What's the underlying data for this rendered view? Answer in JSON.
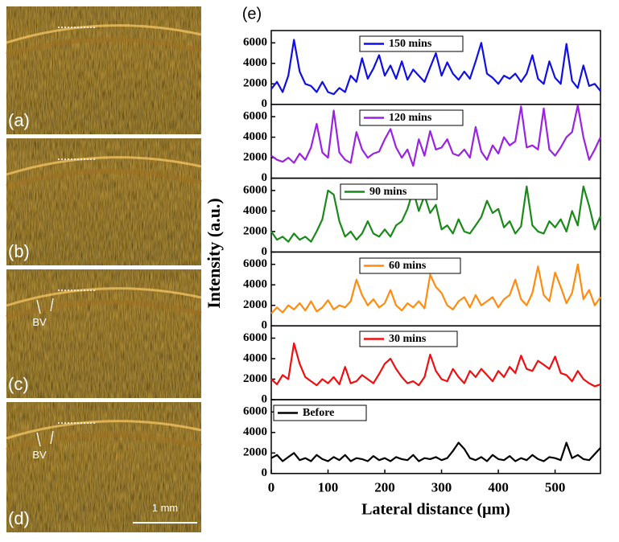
{
  "figure": {
    "panel_label": "(e)",
    "ylabel": "Intensity (a.u.)"
  },
  "images": [
    {
      "label": "(a)"
    },
    {
      "label": "(b)"
    },
    {
      "label": "(c)",
      "annotation": "BV"
    },
    {
      "label": "(d)",
      "annotation": "BV",
      "scale_bar": "1 mm"
    }
  ],
  "chart_data": [
    {
      "type": "line",
      "x": [
        0,
        10,
        20,
        30,
        40,
        50,
        60,
        70,
        80,
        90,
        100,
        110,
        120,
        130,
        140,
        150,
        160,
        170,
        180,
        190,
        200,
        210,
        220,
        230,
        240,
        250,
        260,
        270,
        280,
        290,
        300,
        310,
        320,
        330,
        340,
        350,
        360,
        370,
        380,
        390,
        400,
        410,
        420,
        430,
        440,
        450,
        460,
        470,
        480,
        490,
        500,
        510,
        520,
        530,
        540,
        550,
        560,
        570,
        580
      ],
      "series": [
        {
          "name": "150 mins",
          "color": "#1010e0",
          "values": [
            1500,
            2200,
            1200,
            2800,
            6300,
            3200,
            2000,
            1800,
            1200,
            2200,
            1200,
            1000,
            1600,
            1200,
            2800,
            2200,
            4500,
            2500,
            3500,
            4800,
            2800,
            3800,
            2500,
            4200,
            2400,
            3400,
            2800,
            2200,
            3600,
            5000,
            2800,
            4100,
            3000,
            2400,
            3200,
            2500,
            4200,
            6000,
            3000,
            2600,
            2000,
            2800,
            2500,
            3000,
            2200,
            3000,
            4800,
            2500,
            2000,
            4200,
            2600,
            2000,
            5900,
            2300,
            1600,
            3800,
            1800,
            2000,
            1300
          ]
        }
      ],
      "xlim": [
        0,
        580
      ],
      "ylim": [
        0,
        7200
      ],
      "yticks": [
        0,
        2000,
        4000,
        6000
      ]
    },
    {
      "type": "line",
      "x": [
        0,
        10,
        20,
        30,
        40,
        50,
        60,
        70,
        80,
        90,
        100,
        110,
        120,
        130,
        140,
        150,
        160,
        170,
        180,
        190,
        200,
        210,
        220,
        230,
        240,
        250,
        260,
        270,
        280,
        290,
        300,
        310,
        320,
        330,
        340,
        350,
        360,
        370,
        380,
        390,
        400,
        410,
        420,
        430,
        440,
        450,
        460,
        470,
        480,
        490,
        500,
        510,
        520,
        530,
        540,
        550,
        560,
        570,
        580
      ],
      "series": [
        {
          "name": "120 mins",
          "color": "#9a22e0",
          "values": [
            2200,
            1800,
            1600,
            2000,
            1500,
            2400,
            1800,
            3000,
            5300,
            2500,
            2000,
            6600,
            2500,
            1800,
            1500,
            4500,
            2800,
            2000,
            2400,
            2600,
            3800,
            4800,
            3000,
            2000,
            2800,
            1200,
            3800,
            2200,
            4600,
            2800,
            3000,
            3800,
            2400,
            2200,
            2800,
            2000,
            5000,
            2600,
            1800,
            3200,
            2400,
            4000,
            3200,
            3600,
            7000,
            3000,
            3200,
            2800,
            6800,
            2800,
            2200,
            3000,
            4000,
            4500,
            7100,
            4000,
            1800,
            2800,
            4000
          ]
        }
      ],
      "xlim": [
        0,
        580
      ],
      "ylim": [
        0,
        7200
      ],
      "yticks": [
        0,
        2000,
        4000,
        6000
      ]
    },
    {
      "type": "line",
      "x": [
        0,
        10,
        20,
        30,
        40,
        50,
        60,
        70,
        80,
        90,
        100,
        110,
        120,
        130,
        140,
        150,
        160,
        170,
        180,
        190,
        200,
        210,
        220,
        230,
        240,
        250,
        260,
        270,
        280,
        290,
        300,
        310,
        320,
        330,
        340,
        350,
        360,
        370,
        380,
        390,
        400,
        410,
        420,
        430,
        440,
        450,
        460,
        470,
        480,
        490,
        500,
        510,
        520,
        530,
        540,
        550,
        560,
        570,
        580
      ],
      "series": [
        {
          "name": "90 mins",
          "color": "#1a8a1a",
          "values": [
            2000,
            1200,
            1500,
            1000,
            1800,
            1200,
            1500,
            1000,
            2000,
            3200,
            6000,
            5600,
            3000,
            1500,
            2000,
            1200,
            1800,
            3000,
            1800,
            1500,
            2200,
            1500,
            2600,
            3000,
            4200,
            6000,
            4000,
            5500,
            3800,
            4600,
            2200,
            2600,
            1800,
            3200,
            2000,
            1800,
            2600,
            3400,
            5000,
            3800,
            4200,
            2400,
            3000,
            1800,
            2500,
            6400,
            2600,
            2000,
            1800,
            3000,
            2400,
            3200,
            2000,
            4000,
            2600,
            6400,
            4500,
            2200,
            3500
          ]
        }
      ],
      "xlim": [
        0,
        580
      ],
      "ylim": [
        0,
        7200
      ],
      "yticks": [
        0,
        2000,
        4000,
        6000
      ]
    },
    {
      "type": "line",
      "x": [
        0,
        10,
        20,
        30,
        40,
        50,
        60,
        70,
        80,
        90,
        100,
        110,
        120,
        130,
        140,
        150,
        160,
        170,
        180,
        190,
        200,
        210,
        220,
        230,
        240,
        250,
        260,
        270,
        280,
        290,
        300,
        310,
        320,
        330,
        340,
        350,
        360,
        370,
        380,
        390,
        400,
        410,
        420,
        430,
        440,
        450,
        460,
        470,
        480,
        490,
        500,
        510,
        520,
        530,
        540,
        550,
        560,
        570,
        580
      ],
      "series": [
        {
          "name": "60 mins",
          "color": "#ff8c10",
          "values": [
            1200,
            1800,
            1300,
            2000,
            1600,
            2200,
            1500,
            2400,
            1400,
            1800,
            2500,
            1600,
            2000,
            1800,
            2400,
            4500,
            3000,
            2000,
            2600,
            1800,
            2200,
            3500,
            2000,
            1500,
            2200,
            1800,
            2400,
            1700,
            5000,
            3800,
            3200,
            2000,
            1600,
            2400,
            2800,
            1800,
            3000,
            2000,
            2400,
            2800,
            1800,
            2600,
            3000,
            4500,
            2600,
            2000,
            3200,
            5800,
            3000,
            2400,
            5200,
            3800,
            2200,
            3200,
            6000,
            2600,
            3500,
            2000,
            2800
          ]
        }
      ],
      "xlim": [
        0,
        580
      ],
      "ylim": [
        0,
        7200
      ],
      "yticks": [
        0,
        2000,
        4000,
        6000
      ]
    },
    {
      "type": "line",
      "x": [
        0,
        10,
        20,
        30,
        40,
        50,
        60,
        70,
        80,
        90,
        100,
        110,
        120,
        130,
        140,
        150,
        160,
        170,
        180,
        190,
        200,
        210,
        220,
        230,
        240,
        250,
        260,
        270,
        280,
        290,
        300,
        310,
        320,
        330,
        340,
        350,
        360,
        370,
        380,
        390,
        400,
        410,
        420,
        430,
        440,
        450,
        460,
        470,
        480,
        490,
        500,
        510,
        520,
        530,
        540,
        550,
        560,
        570,
        580
      ],
      "series": [
        {
          "name": "30 mins",
          "color": "#ee1010",
          "values": [
            2000,
            1500,
            2400,
            2000,
            5500,
            3500,
            2200,
            1800,
            1400,
            2000,
            1600,
            2200,
            1500,
            3200,
            1600,
            1800,
            2400,
            2000,
            1600,
            2500,
            3500,
            4000,
            3000,
            2200,
            1600,
            1800,
            1400,
            2200,
            4400,
            2800,
            2000,
            1800,
            3000,
            2200,
            1600,
            2800,
            2200,
            3000,
            2400,
            1800,
            2800,
            2200,
            3200,
            2600,
            4300,
            3000,
            2800,
            3800,
            3400,
            3000,
            4200,
            2600,
            2400,
            1800,
            2800,
            2000,
            1600,
            1300,
            1500
          ]
        }
      ],
      "xlim": [
        0,
        580
      ],
      "ylim": [
        0,
        7200
      ],
      "yticks": [
        0,
        2000,
        4000,
        6000
      ]
    },
    {
      "type": "line",
      "x": [
        0,
        10,
        20,
        30,
        40,
        50,
        60,
        70,
        80,
        90,
        100,
        110,
        120,
        130,
        140,
        150,
        160,
        170,
        180,
        190,
        200,
        210,
        220,
        230,
        240,
        250,
        260,
        270,
        280,
        290,
        300,
        310,
        320,
        330,
        340,
        350,
        360,
        370,
        380,
        390,
        400,
        410,
        420,
        430,
        440,
        450,
        460,
        470,
        480,
        490,
        500,
        510,
        520,
        530,
        540,
        550,
        560,
        570,
        580
      ],
      "series": [
        {
          "name": "Before",
          "color": "#000000",
          "values": [
            1500,
            1800,
            1200,
            1600,
            2000,
            1300,
            1500,
            1200,
            1800,
            1400,
            1200,
            1600,
            1300,
            1800,
            1200,
            1500,
            1400,
            1200,
            1700,
            1300,
            1500,
            1200,
            1600,
            1400,
            1300,
            1800,
            1200,
            1500,
            1400,
            1600,
            1300,
            1500,
            2200,
            3000,
            2400,
            1500,
            1300,
            1600,
            1200,
            1800,
            1400,
            1300,
            1700,
            1200,
            1500,
            1300,
            1800,
            1400,
            1200,
            1600,
            1500,
            1300,
            3000,
            1500,
            1800,
            1400,
            1300,
            1900,
            2500
          ]
        }
      ],
      "xlim": [
        0,
        580
      ],
      "ylim": [
        0,
        7200
      ],
      "yticks": [
        0,
        2000,
        4000,
        6000
      ],
      "xticks": [
        0,
        100,
        200,
        300,
        400,
        500
      ],
      "xlabel": "Lateral distance (μm)"
    }
  ]
}
